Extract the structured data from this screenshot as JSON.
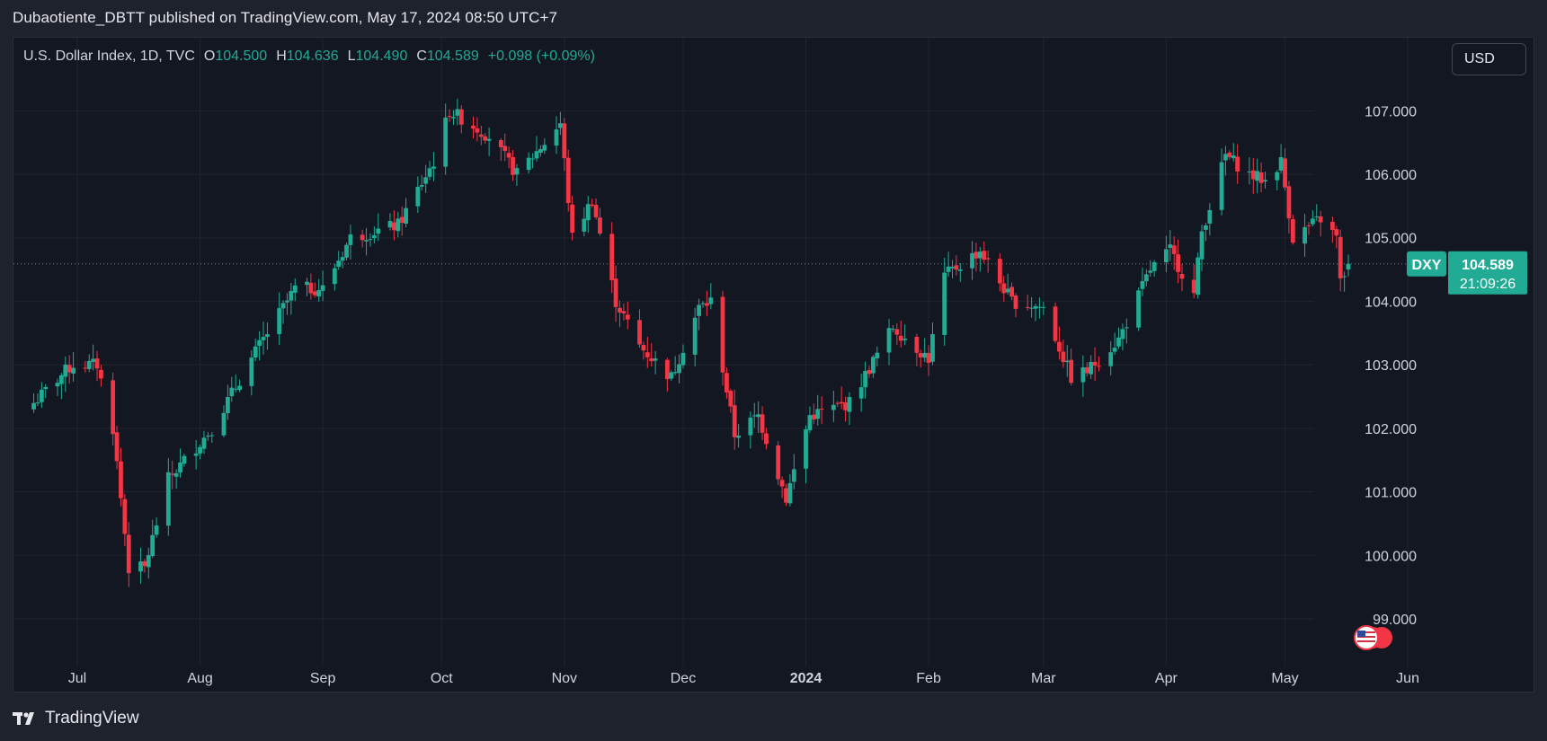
{
  "header": {
    "publisher_line": "Dubaotiente_DBTT published on TradingView.com, May 17, 2024 08:50 UTC+7"
  },
  "legend": {
    "symbol": "U.S. Dollar Index, 1D, TVC",
    "open_label": "O",
    "open": "104.500",
    "high_label": "H",
    "high": "104.636",
    "low_label": "L",
    "low": "104.490",
    "close_label": "C",
    "close": "104.589",
    "change": "+0.098 (+0.09%)"
  },
  "currency_button": "USD",
  "price_tag": {
    "ticker": "DXY",
    "price": "104.589",
    "countdown": "21:09:26"
  },
  "footer": {
    "brand": "TradingView"
  },
  "colors": {
    "up": "#22ab94",
    "down": "#f23645",
    "background": "#131722",
    "grid": "#1f2430",
    "axis_text": "#d1d4dc"
  },
  "chart_data": {
    "type": "candlestick",
    "title": "U.S. Dollar Index, 1D, TVC",
    "y_ticks": [
      "107.000",
      "106.000",
      "105.000",
      "104.000",
      "103.000",
      "102.000",
      "101.000",
      "100.000",
      "99.000"
    ],
    "ylim": [
      98.25,
      108.15
    ],
    "x_ticks": [
      {
        "label": "Jul",
        "date": "2023-07-01"
      },
      {
        "label": "Aug",
        "date": "2023-08-01"
      },
      {
        "label": "Sep",
        "date": "2023-09-01"
      },
      {
        "label": "Oct",
        "date": "2023-10-01"
      },
      {
        "label": "Nov",
        "date": "2023-11-01"
      },
      {
        "label": "Dec",
        "date": "2023-12-01"
      },
      {
        "label": "2024",
        "date": "2024-01-01"
      },
      {
        "label": "Feb",
        "date": "2024-02-01"
      },
      {
        "label": "Mar",
        "date": "2024-03-01"
      },
      {
        "label": "Apr",
        "date": "2024-04-01"
      },
      {
        "label": "May",
        "date": "2024-05-01"
      },
      {
        "label": "Jun",
        "date": "2024-06-01"
      }
    ],
    "last_price": 104.589,
    "grid": true,
    "anchors": [
      [
        "2023-06-20",
        102.4
      ],
      [
        "2023-06-28",
        102.9
      ],
      [
        "2023-06-30",
        103.0
      ],
      [
        "2023-07-06",
        103.0
      ],
      [
        "2023-07-10",
        102.0
      ],
      [
        "2023-07-14",
        99.8
      ],
      [
        "2023-07-18",
        99.8
      ],
      [
        "2023-07-24",
        101.2
      ],
      [
        "2023-08-04",
        102.0
      ],
      [
        "2023-08-15",
        103.2
      ],
      [
        "2023-08-25",
        104.2
      ],
      [
        "2023-09-01",
        104.2
      ],
      [
        "2023-09-08",
        105.0
      ],
      [
        "2023-09-20",
        105.2
      ],
      [
        "2023-09-29",
        106.2
      ],
      [
        "2023-10-03",
        107.0
      ],
      [
        "2023-10-13",
        106.6
      ],
      [
        "2023-10-20",
        106.0
      ],
      [
        "2023-10-27",
        106.5
      ],
      [
        "2023-10-31",
        106.8
      ],
      [
        "2023-11-03",
        105.0
      ],
      [
        "2023-11-08",
        105.6
      ],
      [
        "2023-11-14",
        104.0
      ],
      [
        "2023-11-20",
        103.3
      ],
      [
        "2023-11-28",
        102.8
      ],
      [
        "2023-12-05",
        103.9
      ],
      [
        "2023-12-08",
        104.0
      ],
      [
        "2023-12-14",
        101.9
      ],
      [
        "2023-12-20",
        102.2
      ],
      [
        "2023-12-27",
        100.9
      ],
      [
        "2024-01-02",
        102.2
      ],
      [
        "2024-01-12",
        102.4
      ],
      [
        "2024-01-23",
        103.6
      ],
      [
        "2024-02-01",
        103.1
      ],
      [
        "2024-02-05",
        104.4
      ],
      [
        "2024-02-14",
        104.8
      ],
      [
        "2024-02-22",
        104.0
      ],
      [
        "2024-03-01",
        103.9
      ],
      [
        "2024-03-08",
        102.8
      ],
      [
        "2024-03-12",
        102.9
      ],
      [
        "2024-03-20",
        103.4
      ],
      [
        "2024-03-28",
        104.5
      ],
      [
        "2024-04-02",
        104.8
      ],
      [
        "2024-04-08",
        104.1
      ],
      [
        "2024-04-10",
        105.1
      ],
      [
        "2024-04-16",
        106.3
      ],
      [
        "2024-04-22",
        106.0
      ],
      [
        "2024-04-26",
        105.9
      ],
      [
        "2024-04-30",
        106.2
      ],
      [
        "2024-05-03",
        105.0
      ],
      [
        "2024-05-10",
        105.3
      ],
      [
        "2024-05-14",
        105.0
      ],
      [
        "2024-05-15",
        104.3
      ],
      [
        "2024-05-17",
        104.589
      ]
    ]
  }
}
